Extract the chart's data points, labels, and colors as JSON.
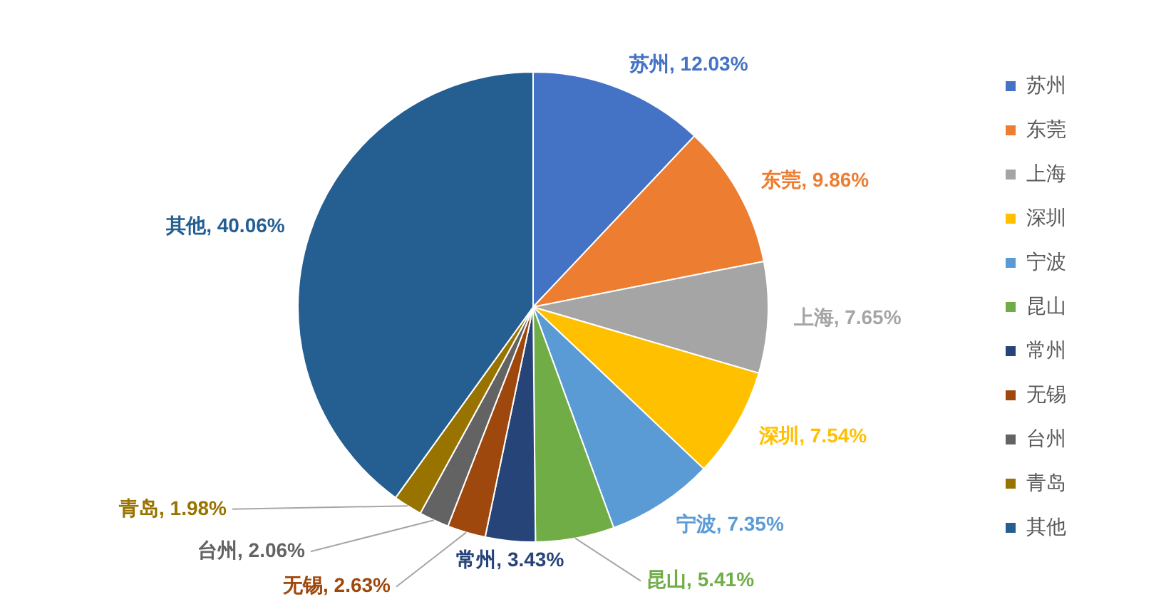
{
  "chart_data": {
    "type": "pie",
    "categories": [
      "苏州",
      "东莞",
      "上海",
      "深圳",
      "宁波",
      "昆山",
      "常州",
      "无锡",
      "台州",
      "青岛",
      "其他"
    ],
    "values": [
      12.03,
      9.86,
      7.65,
      7.54,
      7.35,
      5.41,
      3.43,
      2.63,
      2.06,
      1.98,
      40.06
    ],
    "colors": [
      "#4472c4",
      "#ed7d31",
      "#a5a5a5",
      "#ffc000",
      "#5b9bd5",
      "#70ad47",
      "#264478",
      "#9e480e",
      "#636363",
      "#997300",
      "#255e91"
    ],
    "value_labels": [
      "苏州, 12.03%",
      "东莞, 9.86%",
      "上海, 7.65%",
      "深圳, 7.54%",
      "宁波, 7.35%",
      "昆山, 5.41%",
      "常州, 3.43%",
      "无锡, 2.63%",
      "台州, 2.06%",
      "青岛, 1.98%",
      "其他, 40.06%"
    ],
    "legend": "right"
  }
}
